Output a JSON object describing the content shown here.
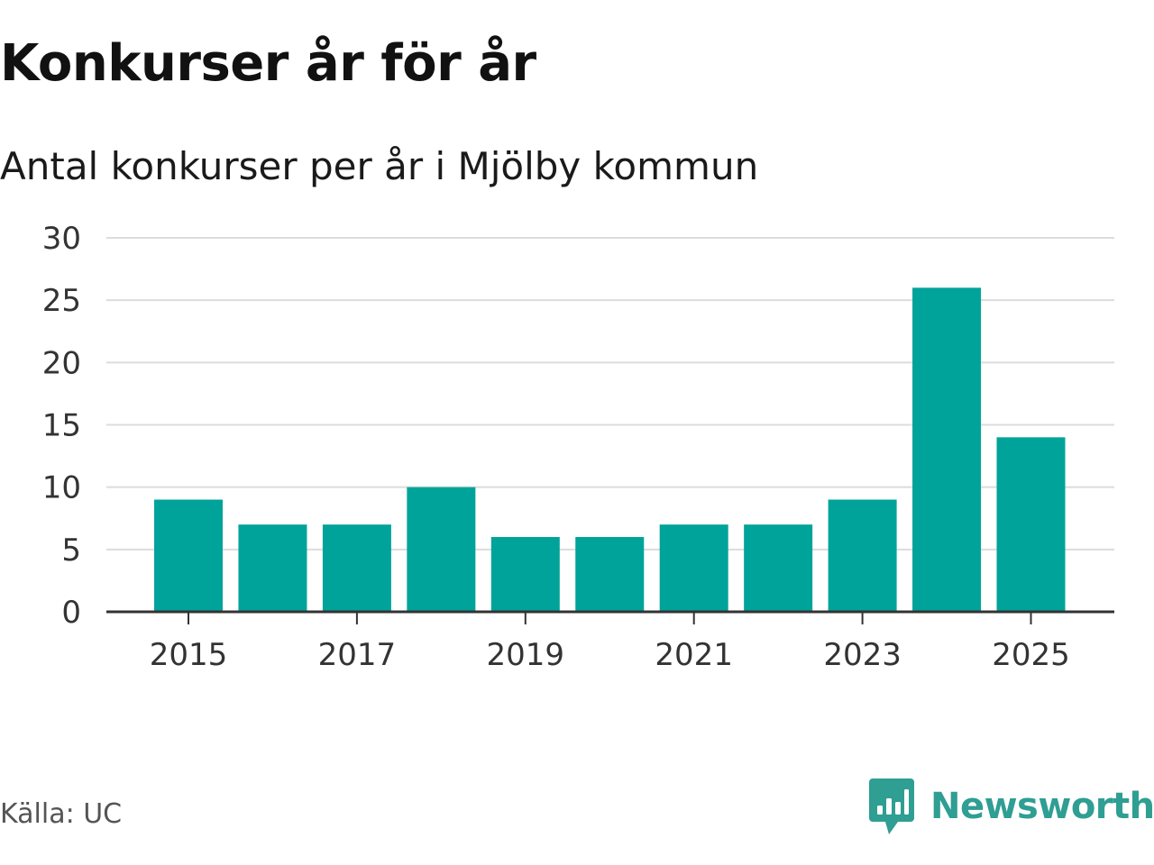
{
  "chart_data": {
    "type": "bar",
    "title": "Konkurser år för år",
    "subtitle": "Antal konkurser per år i Mjölby kommun",
    "categories": [
      "2015",
      "2016",
      "2017",
      "2018",
      "2019",
      "2020",
      "2021",
      "2022",
      "2023",
      "2024",
      "2025"
    ],
    "values": [
      9,
      7,
      7,
      10,
      6,
      6,
      7,
      7,
      9,
      26,
      14
    ],
    "x_tick_labels": [
      "2015",
      "2017",
      "2019",
      "2021",
      "2023",
      "2025"
    ],
    "y_ticks": [
      0,
      5,
      10,
      15,
      20,
      25,
      30
    ],
    "ylim": [
      0,
      30
    ],
    "xlabel": "",
    "ylabel": "",
    "grid": true,
    "bar_color": "#00a39a",
    "grid_color": "#dcdcdc",
    "axis_color": "#333333"
  },
  "footer": {
    "source": "Källa: UC",
    "brand_name": "Newsworthy",
    "brand_icon": "newsworthy-chart-bubble-icon",
    "brand_color": "#2f9e93"
  }
}
